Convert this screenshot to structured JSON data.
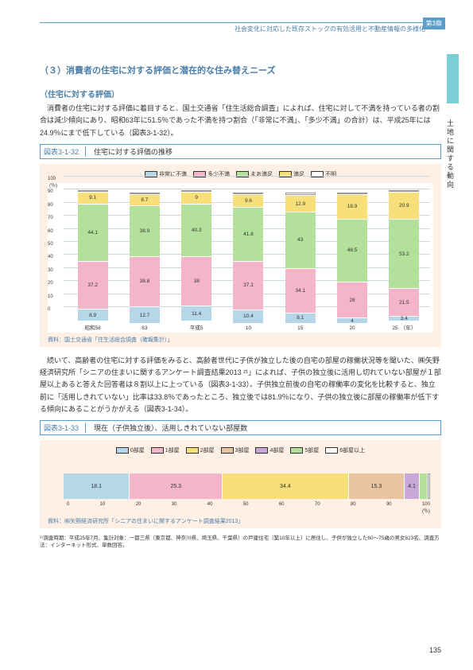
{
  "header": {
    "text": "社会変化に対応した既存ストックの有効活用と不動産情報の多様化",
    "chapter": "第3章",
    "side_text": "土地に関する動向",
    "page_number": "135"
  },
  "section_title": "（３）消費者の住宅に対する評価と潜在的な住み替えニーズ",
  "subsection1_title": "（住宅に対する評価）",
  "paragraph1": "消費者の住宅に対する評価に着目すると、国土交通省「住生活総合調査」によれば、住宅に対して不満を持っている者の割合は減少傾向にあり、昭和63年に51.5％であった不満を持つ割合（「非常に不満」、「多少不満」の合計）は、平成25年には24.9％にまで低下している（図表3-1-32）。",
  "figure1": {
    "number": "図表3-1-32",
    "title": "住宅に対する評価の推移",
    "source": "資料：国土交通省「住生活総合調査（確報集計）」",
    "y_unit": "(％)",
    "ylim": [
      0,
      100
    ],
    "ytick_step": 10,
    "legend": [
      {
        "label": "非常に不満",
        "color": "#b5d7e8"
      },
      {
        "label": "多少不満",
        "color": "#f4b5c9"
      },
      {
        "label": "まあ満足",
        "color": "#b3e09b"
      },
      {
        "label": "満足",
        "color": "#f7e07a"
      },
      {
        "label": "不明",
        "color": "#ffffff"
      }
    ],
    "categories": [
      "昭和58",
      "63",
      "平成5",
      "10",
      "15",
      "20",
      "25　（年）"
    ],
    "series": [
      [
        8.9,
        12.7,
        11.4,
        10.4,
        8.1,
        4.0,
        3.4
      ],
      [
        37.2,
        38.8,
        38.0,
        37.1,
        34.1,
        28.0,
        21.5
      ],
      [
        44.1,
        38.9,
        40.3,
        41.8,
        43.0,
        48.5,
        53.2
      ],
      [
        9.1,
        8.7,
        9.0,
        9.6,
        12.9,
        18.9,
        20.9
      ],
      [
        0.7,
        0.9,
        1.3,
        1.1,
        1.9,
        0.6,
        1.0
      ]
    ],
    "colors": [
      "#b5d7e8",
      "#f4b5c9",
      "#b3e09b",
      "#f7e07a",
      "#ffffff"
    ],
    "show_label": [
      [
        true,
        true,
        true,
        true,
        true,
        true,
        true
      ],
      [
        true,
        true,
        true,
        true,
        true,
        true,
        true
      ],
      [
        true,
        true,
        true,
        true,
        true,
        true,
        true
      ],
      [
        true,
        true,
        true,
        true,
        true,
        true,
        true
      ],
      [
        false,
        false,
        false,
        false,
        false,
        false,
        false
      ]
    ]
  },
  "paragraph2": "続いて、高齢者の住宅に対する評価をみると、高齢者世代に子供が独立した後の自宅の部屋の稼働状況等を聞いた、㈱矢野経済研究所「シニアの住まいに関するアンケート調査結果2013 ²¹」によれば、子供の独立後に活用し切れていない部屋が１部屋以上あると答えた回答者は８割以上に上っている（図表3-1-33）。子供独立前後の自宅の稼働率の変化を比較すると、独立前に「活用しきれていない」比率は33.8％であったところ、独立後では81.9％になり、子供の独立後に部屋の稼働率が低下する傾向にあることがうかがえる（図表3-1-34）。",
  "figure2": {
    "number": "図表3-1-33",
    "title": "現在（子供独立後）、活用しきれていない部屋数",
    "source": "資料：㈱矢野経済研究所「シニアの住まいに関するアンケート調査結果2013」",
    "legend": [
      {
        "label": "0部屋",
        "color": "#b5d7e8"
      },
      {
        "label": "1部屋",
        "color": "#f4b5c9"
      },
      {
        "label": "2部屋",
        "color": "#f7e07a"
      },
      {
        "label": "3部屋",
        "color": "#e8c4a0"
      },
      {
        "label": "4部屋",
        "color": "#c9a7d8"
      },
      {
        "label": "5部屋",
        "color": "#b3e09b"
      },
      {
        "label": "6部屋以上",
        "color": "#ffffff"
      }
    ],
    "values": [
      18.1,
      25.3,
      34.4,
      15.3,
      4.1,
      2.2,
      0.6
    ],
    "top_labels": [
      "2.2"
    ],
    "x_unit": "(％)",
    "xticks": [
      0,
      10,
      20,
      30,
      40,
      50,
      60,
      70,
      80,
      90,
      100
    ]
  },
  "footnote21": "²¹調査時期：平成25年7月、集計対象：一都三県（東京都、神奈川県、埼玉県、千葉県）の戸建住宅（築10年以上）に居住し、子供が独立した60～75歳の男女823名、調査方法：インターネット形式、単数回答。"
}
